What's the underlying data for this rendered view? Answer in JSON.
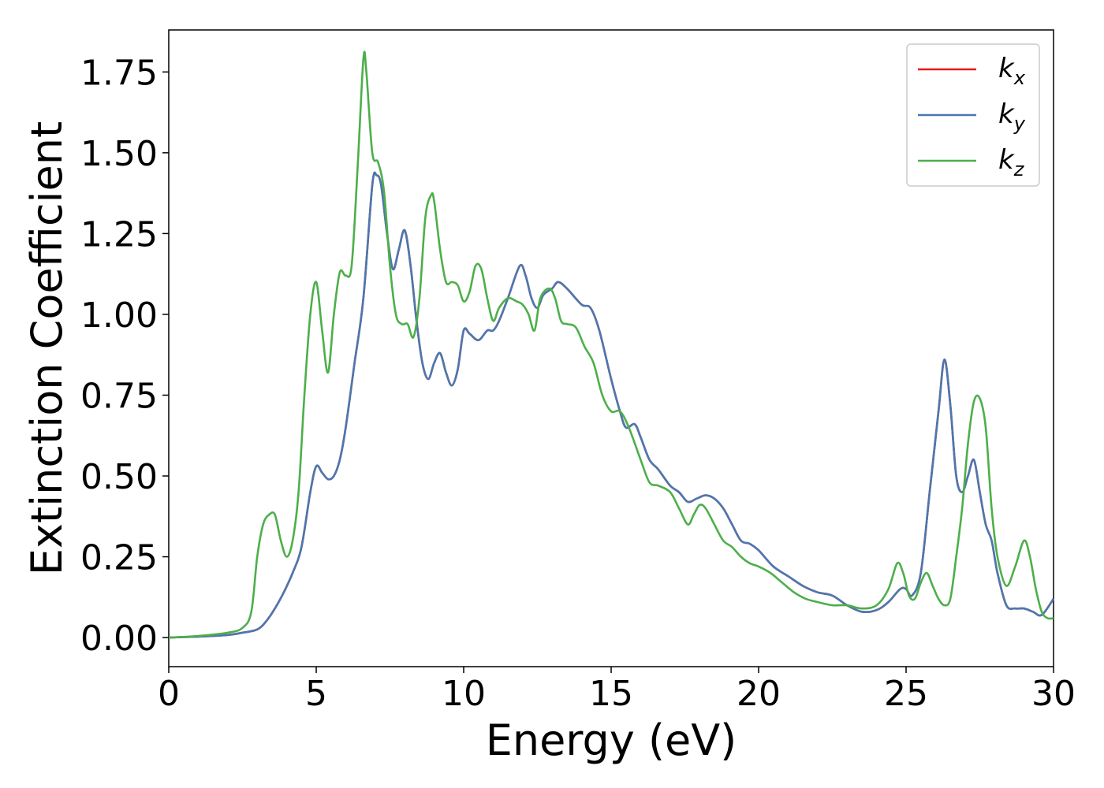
{
  "chart_data": {
    "type": "line",
    "title": "",
    "xlabel": "Energy (eV)",
    "ylabel": "Extinction Coefficient",
    "xlim": [
      0,
      30
    ],
    "ylim": [
      -0.09,
      1.88
    ],
    "xticks": [
      0,
      5,
      10,
      15,
      20,
      25,
      30
    ],
    "xtick_labels": [
      "0",
      "5",
      "10",
      "15",
      "20",
      "25",
      "30"
    ],
    "yticks": [
      0,
      0.25,
      0.5,
      0.75,
      1.0,
      1.25,
      1.5,
      1.75
    ],
    "ytick_labels": [
      "0.00",
      "0.25",
      "0.50",
      "0.75",
      "1.00",
      "1.25",
      "1.50",
      "1.75"
    ],
    "grid": false,
    "legend_position": "top-right",
    "series": [
      {
        "name": "k_x",
        "label_base": "k",
        "label_sub": "x",
        "color": "#e41a1c",
        "x": [
          0,
          1,
          2,
          2.5,
          3,
          3.3,
          3.6,
          3.9,
          4.2,
          4.5,
          4.8,
          5.0,
          5.2,
          5.4,
          5.6,
          5.8,
          6.0,
          6.3,
          6.6,
          6.9,
          7.05,
          7.2,
          7.4,
          7.6,
          7.8,
          8.0,
          8.2,
          8.4,
          8.6,
          8.8,
          9.0,
          9.2,
          9.4,
          9.6,
          9.8,
          10.0,
          10.2,
          10.5,
          10.8,
          11.0,
          11.2,
          11.5,
          11.9,
          12.1,
          12.3,
          12.5,
          12.7,
          13.0,
          13.2,
          13.5,
          14.0,
          14.3,
          14.6,
          15.0,
          15.3,
          15.5,
          15.8,
          16.0,
          16.3,
          16.6,
          17.0,
          17.3,
          17.6,
          17.9,
          18.2,
          18.5,
          18.8,
          19.1,
          19.4,
          19.7,
          20.0,
          20.5,
          21.0,
          21.5,
          22.0,
          22.5,
          23.0,
          23.5,
          24.0,
          24.4,
          24.8,
          25.0,
          25.2,
          25.5,
          25.8,
          26.1,
          26.3,
          26.5,
          26.7,
          26.9,
          27.1,
          27.3,
          27.5,
          27.7,
          27.9,
          28.1,
          28.4,
          28.7,
          29.0,
          29.3,
          29.6,
          30.0
        ],
        "values": [
          0,
          0.003,
          0.008,
          0.015,
          0.025,
          0.05,
          0.09,
          0.14,
          0.2,
          0.28,
          0.45,
          0.53,
          0.51,
          0.49,
          0.5,
          0.55,
          0.65,
          0.85,
          1.05,
          1.4,
          1.43,
          1.4,
          1.25,
          1.14,
          1.2,
          1.26,
          1.15,
          0.98,
          0.85,
          0.8,
          0.85,
          0.88,
          0.82,
          0.78,
          0.83,
          0.95,
          0.94,
          0.92,
          0.95,
          0.95,
          0.98,
          1.05,
          1.15,
          1.12,
          1.05,
          1.02,
          1.06,
          1.08,
          1.1,
          1.08,
          1.03,
          1.02,
          0.95,
          0.8,
          0.7,
          0.65,
          0.66,
          0.62,
          0.55,
          0.52,
          0.47,
          0.45,
          0.42,
          0.43,
          0.44,
          0.43,
          0.4,
          0.35,
          0.3,
          0.29,
          0.27,
          0.22,
          0.19,
          0.16,
          0.14,
          0.13,
          0.1,
          0.08,
          0.085,
          0.11,
          0.15,
          0.15,
          0.13,
          0.2,
          0.45,
          0.7,
          0.86,
          0.72,
          0.5,
          0.45,
          0.5,
          0.55,
          0.45,
          0.35,
          0.3,
          0.2,
          0.1,
          0.09,
          0.09,
          0.08,
          0.07,
          0.12
        ]
      },
      {
        "name": "k_y",
        "label_base": "k",
        "label_sub": "y",
        "color": "#4a78b0",
        "x": [
          0,
          1,
          2,
          2.5,
          3,
          3.3,
          3.6,
          3.9,
          4.2,
          4.5,
          4.8,
          5.0,
          5.2,
          5.4,
          5.6,
          5.8,
          6.0,
          6.3,
          6.6,
          6.9,
          7.05,
          7.2,
          7.4,
          7.6,
          7.8,
          8.0,
          8.2,
          8.4,
          8.6,
          8.8,
          9.0,
          9.2,
          9.4,
          9.6,
          9.8,
          10.0,
          10.2,
          10.5,
          10.8,
          11.0,
          11.2,
          11.5,
          11.9,
          12.1,
          12.3,
          12.5,
          12.7,
          13.0,
          13.2,
          13.5,
          14.0,
          14.3,
          14.6,
          15.0,
          15.3,
          15.5,
          15.8,
          16.0,
          16.3,
          16.6,
          17.0,
          17.3,
          17.6,
          17.9,
          18.2,
          18.5,
          18.8,
          19.1,
          19.4,
          19.7,
          20.0,
          20.5,
          21.0,
          21.5,
          22.0,
          22.5,
          23.0,
          23.5,
          24.0,
          24.4,
          24.8,
          25.0,
          25.2,
          25.5,
          25.8,
          26.1,
          26.3,
          26.5,
          26.7,
          26.9,
          27.1,
          27.3,
          27.5,
          27.7,
          27.9,
          28.1,
          28.4,
          28.7,
          29.0,
          29.3,
          29.6,
          30.0
        ],
        "values": [
          0,
          0.003,
          0.008,
          0.015,
          0.025,
          0.05,
          0.09,
          0.14,
          0.2,
          0.28,
          0.45,
          0.53,
          0.51,
          0.49,
          0.5,
          0.55,
          0.65,
          0.85,
          1.05,
          1.4,
          1.43,
          1.4,
          1.25,
          1.14,
          1.2,
          1.26,
          1.15,
          0.98,
          0.85,
          0.8,
          0.85,
          0.88,
          0.82,
          0.78,
          0.83,
          0.95,
          0.94,
          0.92,
          0.95,
          0.95,
          0.98,
          1.05,
          1.15,
          1.12,
          1.05,
          1.02,
          1.06,
          1.08,
          1.1,
          1.08,
          1.03,
          1.02,
          0.95,
          0.8,
          0.7,
          0.65,
          0.66,
          0.62,
          0.55,
          0.52,
          0.47,
          0.45,
          0.42,
          0.43,
          0.44,
          0.43,
          0.4,
          0.35,
          0.3,
          0.29,
          0.27,
          0.22,
          0.19,
          0.16,
          0.14,
          0.13,
          0.1,
          0.08,
          0.085,
          0.11,
          0.15,
          0.15,
          0.13,
          0.2,
          0.45,
          0.7,
          0.86,
          0.72,
          0.5,
          0.45,
          0.5,
          0.55,
          0.45,
          0.35,
          0.3,
          0.2,
          0.1,
          0.09,
          0.09,
          0.08,
          0.07,
          0.12
        ]
      },
      {
        "name": "k_z",
        "label_base": "k",
        "label_sub": "z",
        "color": "#4daf4a",
        "x": [
          0,
          1,
          2,
          2.5,
          2.8,
          3.0,
          3.2,
          3.4,
          3.6,
          3.8,
          4.0,
          4.2,
          4.4,
          4.6,
          4.8,
          5.0,
          5.2,
          5.4,
          5.6,
          5.8,
          6.0,
          6.2,
          6.4,
          6.6,
          6.7,
          6.9,
          7.1,
          7.3,
          7.5,
          7.7,
          7.9,
          8.1,
          8.3,
          8.5,
          8.7,
          8.9,
          9.0,
          9.2,
          9.4,
          9.6,
          9.8,
          10.0,
          10.2,
          10.4,
          10.6,
          10.8,
          11.0,
          11.2,
          11.5,
          11.8,
          12.0,
          12.2,
          12.4,
          12.6,
          12.9,
          13.1,
          13.3,
          13.5,
          13.8,
          14.1,
          14.4,
          14.7,
          15.0,
          15.3,
          15.6,
          16.0,
          16.3,
          16.6,
          17.0,
          17.3,
          17.6,
          17.8,
          18.0,
          18.2,
          18.5,
          18.8,
          19.1,
          19.4,
          19.7,
          20.0,
          20.4,
          20.8,
          21.2,
          21.6,
          22.0,
          22.5,
          23.0,
          23.5,
          24.0,
          24.4,
          24.7,
          24.9,
          25.1,
          25.3,
          25.5,
          25.7,
          25.9,
          26.1,
          26.3,
          26.5,
          26.7,
          26.9,
          27.1,
          27.3,
          27.5,
          27.7,
          27.9,
          28.1,
          28.4,
          28.7,
          29.0,
          29.2,
          29.4,
          29.6,
          29.8,
          30.0
        ],
        "values": [
          0,
          0.005,
          0.015,
          0.03,
          0.08,
          0.25,
          0.35,
          0.38,
          0.38,
          0.3,
          0.25,
          0.3,
          0.45,
          0.75,
          1.0,
          1.1,
          0.95,
          0.82,
          1.0,
          1.13,
          1.12,
          1.15,
          1.45,
          1.79,
          1.75,
          1.5,
          1.47,
          1.38,
          1.15,
          1.0,
          0.97,
          0.97,
          0.93,
          1.05,
          1.3,
          1.37,
          1.35,
          1.2,
          1.1,
          1.1,
          1.09,
          1.04,
          1.07,
          1.15,
          1.14,
          1.05,
          0.98,
          1.02,
          1.05,
          1.04,
          1.03,
          1.0,
          0.95,
          1.05,
          1.08,
          1.05,
          0.98,
          0.97,
          0.96,
          0.9,
          0.85,
          0.75,
          0.7,
          0.7,
          0.65,
          0.55,
          0.48,
          0.47,
          0.45,
          0.4,
          0.35,
          0.38,
          0.41,
          0.4,
          0.35,
          0.3,
          0.28,
          0.25,
          0.23,
          0.22,
          0.2,
          0.17,
          0.14,
          0.12,
          0.11,
          0.1,
          0.1,
          0.09,
          0.1,
          0.15,
          0.23,
          0.2,
          0.13,
          0.12,
          0.17,
          0.2,
          0.16,
          0.12,
          0.1,
          0.12,
          0.25,
          0.4,
          0.6,
          0.73,
          0.74,
          0.65,
          0.4,
          0.25,
          0.16,
          0.22,
          0.3,
          0.25,
          0.15,
          0.08,
          0.06,
          0.06
        ]
      }
    ]
  }
}
